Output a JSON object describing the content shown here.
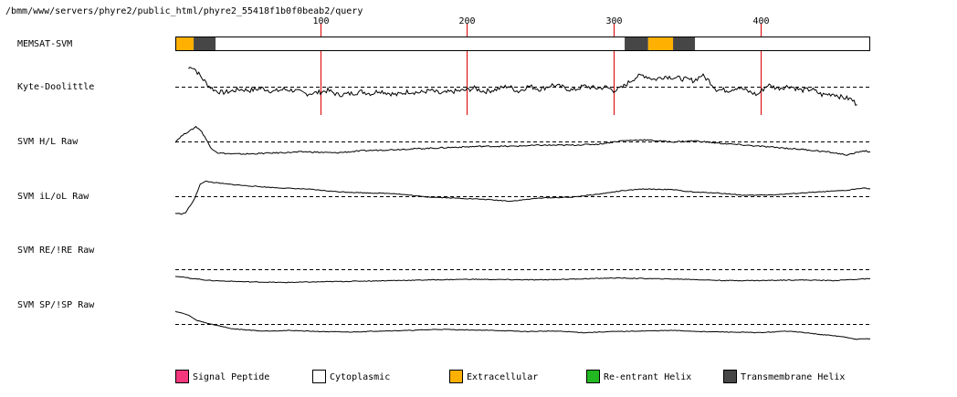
{
  "header": {
    "path": "/bmm/www/servers/phyre2/public_html/phyre2_55418f1b0f0beab2/query"
  },
  "chart_data": {
    "type": "line",
    "x_axis": {
      "min": 1,
      "max": 475,
      "ticks": [
        "100",
        "200",
        "300",
        "400"
      ]
    },
    "memsat_track": {
      "label": "MEMSAT-SVM",
      "segments": [
        {
          "start": 1,
          "end": 13,
          "type": "Extracellular"
        },
        {
          "start": 14,
          "end": 28,
          "type": "Transmembrane Helix"
        },
        {
          "start": 29,
          "end": 307,
          "type": "Cytoplasmic"
        },
        {
          "start": 308,
          "end": 323,
          "type": "Transmembrane Helix"
        },
        {
          "start": 324,
          "end": 340,
          "type": "Extracellular"
        },
        {
          "start": 341,
          "end": 355,
          "type": "Transmembrane Helix"
        },
        {
          "start": 356,
          "end": 475,
          "type": "Cytoplasmic"
        }
      ]
    },
    "tracks": [
      {
        "label": "Kyte-Doolittle",
        "x": [
          10,
          12,
          14,
          17,
          20,
          24,
          28,
          33,
          38,
          45,
          52,
          60,
          68,
          75,
          82,
          90,
          98,
          105,
          112,
          120,
          128,
          135,
          140,
          145,
          152,
          160,
          168,
          175,
          182,
          190,
          198,
          205,
          212,
          220,
          228,
          235,
          242,
          250,
          258,
          265,
          272,
          280,
          288,
          295,
          300,
          305,
          310,
          315,
          320,
          328,
          335,
          345,
          355,
          360,
          365,
          370,
          378,
          385,
          392,
          398,
          405,
          412,
          420,
          428,
          435,
          442,
          450,
          455,
          462,
          466
        ],
        "y": [
          0.85,
          0.95,
          0.85,
          0.6,
          0.35,
          0.05,
          -0.15,
          -0.25,
          -0.2,
          -0.1,
          -0.15,
          -0.05,
          -0.2,
          -0.1,
          -0.15,
          -0.3,
          -0.25,
          -0.15,
          -0.35,
          -0.3,
          -0.2,
          -0.3,
          -0.15,
          -0.25,
          -0.35,
          -0.2,
          -0.25,
          -0.15,
          -0.3,
          -0.2,
          -0.15,
          -0.05,
          -0.2,
          -0.1,
          0.05,
          -0.2,
          0.05,
          -0.1,
          0.1,
          0.0,
          -0.15,
          0.05,
          -0.05,
          0.0,
          -0.15,
          -0.05,
          0.2,
          0.45,
          0.55,
          0.35,
          0.5,
          0.4,
          0.3,
          0.55,
          0.3,
          -0.1,
          -0.15,
          0.0,
          -0.2,
          -0.35,
          0.1,
          -0.05,
          0.05,
          -0.15,
          -0.1,
          -0.35,
          -0.3,
          -0.45,
          -0.55,
          -0.8
        ]
      },
      {
        "label": "SVM H/L Raw",
        "x": [
          1,
          4,
          8,
          12,
          15,
          18,
          21,
          25,
          30,
          40,
          50,
          70,
          90,
          110,
          130,
          150,
          170,
          190,
          210,
          230,
          250,
          270,
          290,
          305,
          320,
          340,
          355,
          370,
          390,
          410,
          430,
          445,
          460,
          470,
          475
        ],
        "y": [
          0.0,
          0.2,
          0.4,
          0.55,
          0.7,
          0.55,
          0.25,
          -0.25,
          -0.5,
          -0.55,
          -0.55,
          -0.5,
          -0.45,
          -0.5,
          -0.4,
          -0.35,
          -0.3,
          -0.25,
          -0.2,
          -0.2,
          -0.15,
          -0.15,
          -0.1,
          0.05,
          0.1,
          0.0,
          0.05,
          -0.05,
          -0.15,
          -0.25,
          -0.35,
          -0.45,
          -0.6,
          -0.4,
          -0.45
        ]
      },
      {
        "label": "SVM iL/oL Raw",
        "x": [
          1,
          5,
          8,
          10,
          14,
          18,
          22,
          28,
          35,
          50,
          70,
          90,
          110,
          130,
          150,
          170,
          190,
          210,
          230,
          250,
          270,
          290,
          305,
          320,
          340,
          355,
          370,
          390,
          410,
          430,
          445,
          460,
          470,
          475
        ],
        "y": [
          -1.3,
          -1.35,
          -1.25,
          -0.9,
          -0.2,
          1.0,
          1.2,
          1.1,
          1.0,
          0.85,
          0.7,
          0.6,
          0.4,
          0.3,
          0.25,
          0.0,
          -0.1,
          -0.2,
          -0.35,
          -0.1,
          -0.05,
          0.2,
          0.45,
          0.6,
          0.55,
          0.35,
          0.3,
          0.1,
          0.15,
          0.3,
          0.4,
          0.5,
          0.7,
          0.6
        ]
      },
      {
        "label": "SVM RE/!RE Raw",
        "x": [
          1,
          10,
          25,
          50,
          75,
          100,
          150,
          200,
          250,
          300,
          325,
          350,
          375,
          400,
          425,
          450,
          475
        ],
        "y": [
          -0.5,
          -0.65,
          -0.85,
          -0.95,
          -1.0,
          -0.95,
          -0.85,
          -0.75,
          -0.8,
          -0.65,
          -0.7,
          -0.75,
          -0.85,
          -0.85,
          -0.8,
          -0.85,
          -0.7
        ]
      },
      {
        "label": "SVM SP/!SP Raw",
        "x": [
          1,
          5,
          10,
          15,
          20,
          30,
          40,
          60,
          80,
          100,
          120,
          140,
          160,
          180,
          200,
          220,
          240,
          260,
          280,
          300,
          320,
          340,
          360,
          380,
          400,
          420,
          440,
          455,
          465,
          475
        ],
        "y": [
          1.2,
          1.05,
          0.85,
          0.4,
          0.2,
          -0.1,
          -0.4,
          -0.6,
          -0.55,
          -0.65,
          -0.7,
          -0.6,
          -0.55,
          -0.45,
          -0.5,
          -0.55,
          -0.65,
          -0.6,
          -0.75,
          -0.65,
          -0.6,
          -0.55,
          -0.65,
          -0.7,
          -0.75,
          -0.6,
          -0.9,
          -1.1,
          -1.35,
          -1.3
        ]
      }
    ],
    "colors": {
      "Signal Peptide": "#f4377d",
      "Cytoplasmic": "#ffffff",
      "Extracellular": "#ffb000",
      "Re-entrant Helix": "#22b822",
      "Transmembrane Helix": "#464646",
      "ticks": "#dd0000",
      "trace": "#000000"
    }
  },
  "legend": [
    {
      "label": "Signal Peptide",
      "color": "#f4377d"
    },
    {
      "label": "Cytoplasmic",
      "color": "#ffffff"
    },
    {
      "label": "Extracellular",
      "color": "#ffb000"
    },
    {
      "label": "Re-entrant Helix",
      "color": "#22b822"
    },
    {
      "label": "Transmembrane Helix",
      "color": "#464646"
    }
  ]
}
